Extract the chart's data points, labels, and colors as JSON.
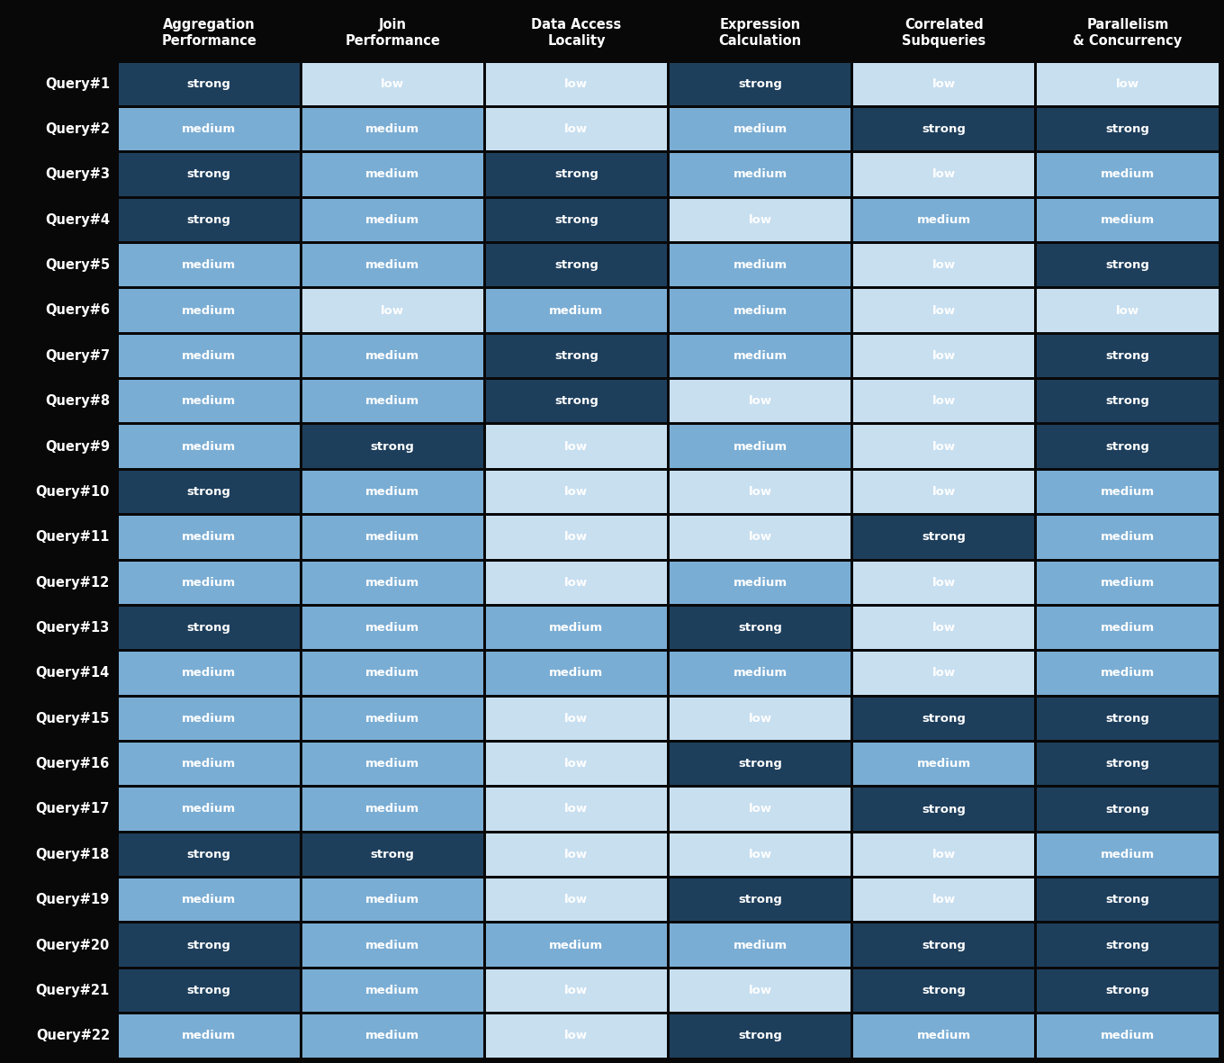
{
  "columns": [
    "Aggregation\nPerformance",
    "Join\nPerformance",
    "Data Access\nLocality",
    "Expression\nCalculation",
    "Correlated\nSubqueries",
    "Parallelism\n& Concurrency"
  ],
  "rows": [
    "Query#1",
    "Query#2",
    "Query#3",
    "Query#4",
    "Query#5",
    "Query#6",
    "Query#7",
    "Query#8",
    "Query#9",
    "Query#10",
    "Query#11",
    "Query#12",
    "Query#13",
    "Query#14",
    "Query#15",
    "Query#16",
    "Query#17",
    "Query#18",
    "Query#19",
    "Query#20",
    "Query#21",
    "Query#22"
  ],
  "data": [
    [
      "strong",
      "low",
      "low",
      "strong",
      "low",
      "low"
    ],
    [
      "medium",
      "medium",
      "low",
      "medium",
      "strong",
      "strong"
    ],
    [
      "strong",
      "medium",
      "strong",
      "medium",
      "low",
      "medium"
    ],
    [
      "strong",
      "medium",
      "strong",
      "low",
      "medium",
      "medium"
    ],
    [
      "medium",
      "medium",
      "strong",
      "medium",
      "low",
      "strong"
    ],
    [
      "medium",
      "low",
      "medium",
      "medium",
      "low",
      "low"
    ],
    [
      "medium",
      "medium",
      "strong",
      "medium",
      "low",
      "strong"
    ],
    [
      "medium",
      "medium",
      "strong",
      "low",
      "low",
      "strong"
    ],
    [
      "medium",
      "strong",
      "low",
      "medium",
      "low",
      "strong"
    ],
    [
      "strong",
      "medium",
      "low",
      "low",
      "low",
      "medium"
    ],
    [
      "medium",
      "medium",
      "low",
      "low",
      "strong",
      "medium"
    ],
    [
      "medium",
      "medium",
      "low",
      "medium",
      "low",
      "medium"
    ],
    [
      "strong",
      "medium",
      "medium",
      "strong",
      "low",
      "medium"
    ],
    [
      "medium",
      "medium",
      "medium",
      "medium",
      "low",
      "medium"
    ],
    [
      "medium",
      "medium",
      "low",
      "low",
      "strong",
      "strong"
    ],
    [
      "medium",
      "medium",
      "low",
      "strong",
      "medium",
      "strong"
    ],
    [
      "medium",
      "medium",
      "low",
      "low",
      "strong",
      "strong"
    ],
    [
      "strong",
      "strong",
      "low",
      "low",
      "low",
      "medium"
    ],
    [
      "medium",
      "medium",
      "low",
      "strong",
      "low",
      "strong"
    ],
    [
      "strong",
      "medium",
      "medium",
      "medium",
      "strong",
      "strong"
    ],
    [
      "strong",
      "medium",
      "low",
      "low",
      "strong",
      "strong"
    ],
    [
      "medium",
      "medium",
      "low",
      "strong",
      "medium",
      "medium"
    ]
  ],
  "colors": {
    "strong": "#1e3f5c",
    "medium": "#7aadd4",
    "low": "#c8dff0"
  },
  "text_color": "#ffffff",
  "background_color": "#080808",
  "header_text_color": "#ffffff",
  "row_label_color": "#ffffff",
  "figure_bg": "#080808",
  "fig_width": 13.6,
  "fig_height": 11.81,
  "dpi": 100
}
